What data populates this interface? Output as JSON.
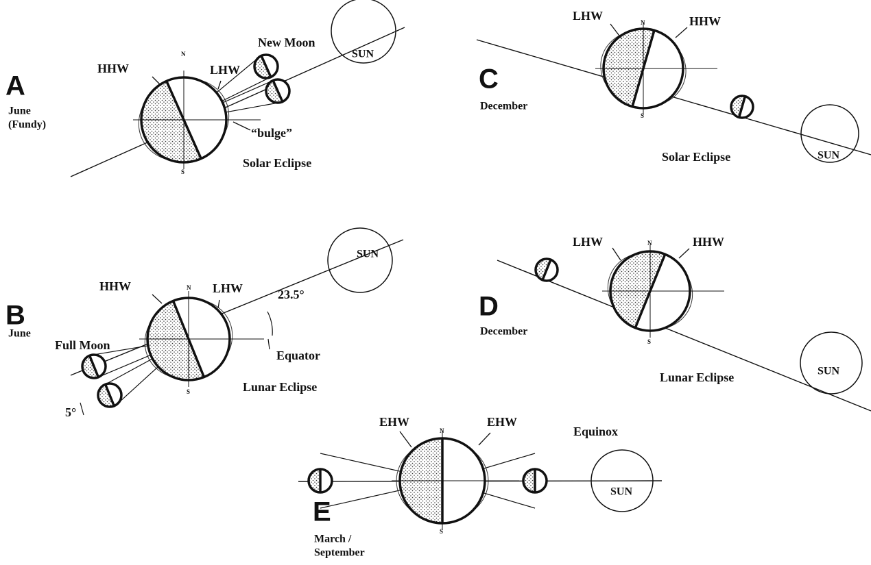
{
  "panels": [
    {
      "letter": "A",
      "caption": [
        "June",
        "(Fundy)"
      ],
      "left_marker": "HHW",
      "right_marker": "LHW",
      "north": "N",
      "south": "S",
      "moon": "New Moon",
      "sun": "SUN",
      "bulge": "“bulge”",
      "eclipse": "Solar Eclipse"
    },
    {
      "letter": "B",
      "caption": [
        "June"
      ],
      "left_marker": "HHW",
      "right_marker": "LHW",
      "north": "N",
      "south": "S",
      "moon": "Full Moon",
      "sun": "SUN",
      "angle": "23.5°",
      "equator": "Equator",
      "moon_angle": "5°",
      "eclipse": "Lunar Eclipse"
    },
    {
      "letter": "C",
      "caption": [
        "December"
      ],
      "left_marker": "LHW",
      "right_marker": "HHW",
      "north": "N",
      "south": "S",
      "sun": "SUN",
      "eclipse": "Solar Eclipse"
    },
    {
      "letter": "D",
      "caption": [
        "December"
      ],
      "left_marker": "LHW",
      "right_marker": "HHW",
      "north": "N",
      "south": "S",
      "sun": "SUN",
      "eclipse": "Lunar Eclipse"
    },
    {
      "letter": "E",
      "caption": [
        "March /",
        "September"
      ],
      "left_marker": "EHW",
      "right_marker": "EHW",
      "north": "N",
      "south": "S",
      "sun": "SUN",
      "eclipse": "Equinox"
    }
  ]
}
